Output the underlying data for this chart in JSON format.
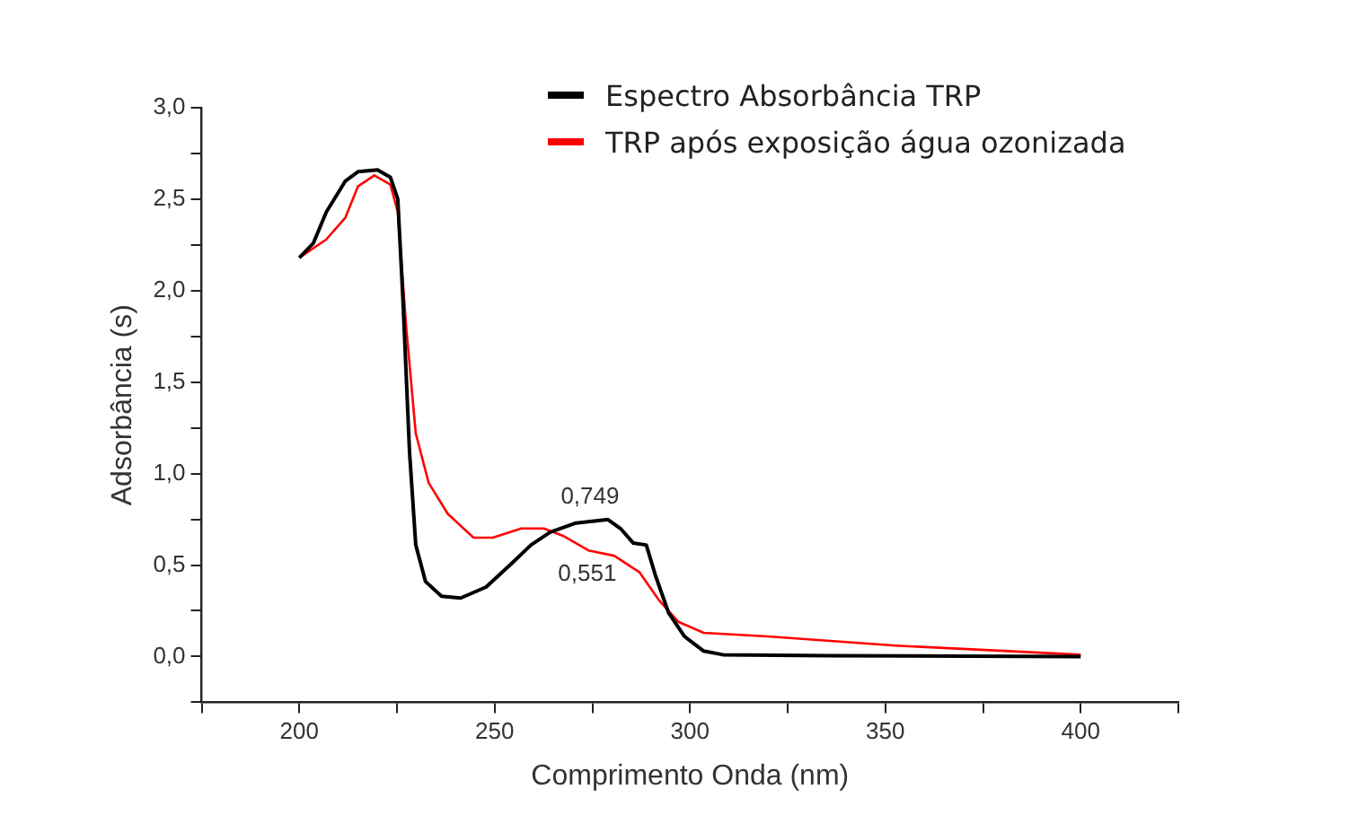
{
  "chart_data": {
    "type": "line",
    "xlabel": "Comprimento Onda (nm)",
    "ylabel": "Adsorbância (s)",
    "xlim": [
      175,
      425
    ],
    "xticks": [
      {
        "value": 175,
        "label": null
      },
      200,
      {
        "value": 225,
        "label": null
      },
      250,
      {
        "value": 275,
        "label": null
      },
      300,
      {
        "value": 325,
        "label": null
      },
      350,
      {
        "value": 375,
        "label": null
      },
      400,
      {
        "value": 425,
        "label": null
      }
    ],
    "ylim": [
      -0.25,
      3.0
    ],
    "yticks": [
      {
        "value": -0.25,
        "label": null
      },
      {
        "value": 0,
        "label": "0,0"
      },
      {
        "value": 0.25,
        "label": null
      },
      {
        "value": 0.5,
        "label": "0,5"
      },
      {
        "value": 0.75,
        "label": null
      },
      {
        "value": 1,
        "label": "1,0"
      },
      {
        "value": 1.25,
        "label": null
      },
      {
        "value": 1.5,
        "label": "1,5"
      },
      {
        "value": 1.75,
        "label": null
      },
      {
        "value": 2,
        "label": "2,0"
      },
      {
        "value": 2.25,
        "label": null
      },
      {
        "value": 2.5,
        "label": "2,5"
      },
      {
        "value": 2.75,
        "label": null
      },
      {
        "value": 3,
        "label": "3,0"
      }
    ],
    "grid": false,
    "legend": "top right",
    "marker": "none",
    "line_style": "solid",
    "series": [
      {
        "name": "Espectro Absorbância TRP",
        "color": "#000000",
        "x": [
          200,
          203.6,
          206.9,
          211.8,
          215,
          220,
          223.3,
          225.2,
          226.5,
          228.2,
          229.8,
          232.3,
          236.4,
          241.3,
          247.8,
          254.4,
          259.3,
          264.2,
          270.8,
          279,
          282.2,
          285.5,
          288.8,
          291.2,
          294.5,
          298.6,
          303.5,
          308.4,
          336,
          400
        ],
        "values": [
          2.18,
          2.26,
          2.43,
          2.6,
          2.65,
          2.66,
          2.62,
          2.5,
          1.96,
          1.12,
          0.61,
          0.41,
          0.33,
          0.32,
          0.38,
          0.51,
          0.61,
          0.68,
          0.73,
          0.749,
          0.7,
          0.62,
          0.61,
          0.44,
          0.24,
          0.11,
          0.03,
          0.01,
          0.005,
          0
        ]
      },
      {
        "name": "TRP após exposição água ozonizada",
        "color": "#ff0000",
        "x": [
          200,
          206.9,
          211.8,
          215,
          219.2,
          223.3,
          225.2,
          227.4,
          229.8,
          233.1,
          238,
          244.6,
          249.5,
          256.8,
          262.6,
          267.5,
          274,
          280.6,
          287.1,
          292,
          297,
          303.5,
          319.9,
          352.7,
          400
        ],
        "values": [
          2.18,
          2.28,
          2.4,
          2.57,
          2.63,
          2.58,
          2.43,
          1.79,
          1.22,
          0.95,
          0.78,
          0.65,
          0.65,
          0.7,
          0.7,
          0.66,
          0.58,
          0.551,
          0.46,
          0.31,
          0.19,
          0.13,
          0.11,
          0.06,
          0.01
        ]
      }
    ],
    "annotations": [
      {
        "text": "0,749",
        "x": 279,
        "y": 0.749
      },
      {
        "text": "0,551",
        "x": 280.6,
        "y": 0.551
      }
    ]
  }
}
